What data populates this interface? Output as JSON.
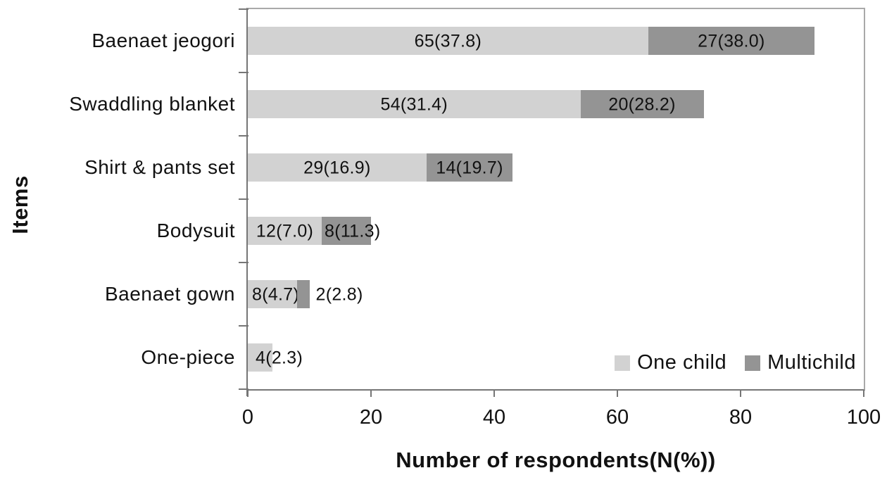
{
  "chart_data": {
    "type": "bar",
    "orientation": "horizontal",
    "stacked": true,
    "title": "",
    "xlabel": "Number of respondents(N(%))",
    "ylabel": "Items",
    "xlim": [
      0,
      100
    ],
    "xticks": [
      "0",
      "20",
      "40",
      "60",
      "80",
      "100"
    ],
    "xtick_values": [
      0,
      20,
      40,
      60,
      80,
      100
    ],
    "grid": false,
    "categories": [
      "Baenaet jeogori",
      "Swaddling blanket",
      "Shirt & pants set",
      "Bodysuit",
      "Baenaet gown",
      "One-piece"
    ],
    "series": [
      {
        "name": "One child",
        "color": "#d2d2d2",
        "values": [
          65,
          54,
          29,
          12,
          8,
          4
        ],
        "percents": [
          37.8,
          31.4,
          16.9,
          7.0,
          4.7,
          2.3
        ],
        "labels": [
          "65(37.8)",
          "54(31.4)",
          "29(16.9)",
          "12(7.0)",
          "8(4.7)",
          "4(2.3)"
        ],
        "label_placements": [
          "center",
          "center",
          "center",
          "center",
          "pad:6",
          "pad:11"
        ]
      },
      {
        "name": "Multichild",
        "color": "#949494",
        "values": [
          27,
          20,
          14,
          8,
          2,
          0
        ],
        "percents": [
          38.0,
          28.2,
          19.7,
          11.3,
          2.8,
          null
        ],
        "labels": [
          "27(38.0)",
          "20(28.2)",
          "14(19.7)",
          "8(11.3)",
          "2(2.8)",
          ""
        ],
        "label_placements": [
          "center",
          "center",
          "center",
          "pad:4",
          "out:9",
          ""
        ]
      }
    ],
    "legend": {
      "position": "inside-bottom-right",
      "entries": [
        "One child",
        "Multichild"
      ]
    },
    "colors": {
      "axis_line": "#767676",
      "plot_border": "#a9a9a9",
      "label_text": "#111111",
      "background": "#ffffff"
    }
  }
}
